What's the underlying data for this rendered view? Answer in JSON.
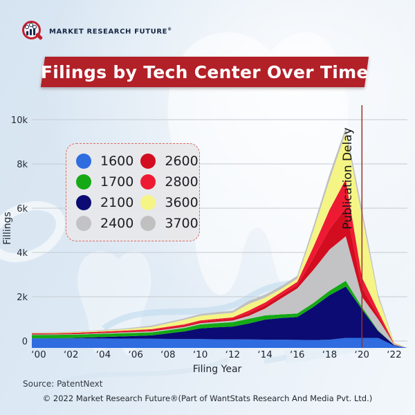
{
  "logo": {
    "brand": "MARKET RESEARCH FUTURE",
    "reg": "®",
    "icon": "magnifier-bar-chart-icon"
  },
  "banner": {
    "title": "Filings by Tech Center Over Time",
    "color": "#b22028"
  },
  "legend": {
    "items": [
      {
        "label": "1600",
        "color": "#2e6ce0"
      },
      {
        "label": "1700",
        "color": "#15a915"
      },
      {
        "label": "2100",
        "color": "#0b0b73"
      },
      {
        "label": "2400",
        "color": "#c3c3c5"
      },
      {
        "label": "2600",
        "color": "#d30d20"
      },
      {
        "label": "2800",
        "color": "#ee1a33"
      },
      {
        "label": "3600",
        "color": "#f5f586"
      },
      {
        "label": "3700",
        "color": "#c0c0c0"
      }
    ]
  },
  "annotation": {
    "label": "Publication Delay",
    "line_color": "#9b2f27",
    "x_year": 2020
  },
  "footer": {
    "source": "Source: PatentNext",
    "copyright": "© 2022 Market Research Future®(Part of WantStats Research And Media Pvt. Ltd.)"
  },
  "chart_data": {
    "type": "area",
    "stacked": true,
    "title": "Filings by Tech Center Over Time",
    "xlabel": "Filing Year",
    "ylabel": "Fillings",
    "ylim": [
      0,
      10000
    ],
    "grid": "horizontal",
    "legend_position": "upper-left",
    "x": [
      2000,
      2001,
      2002,
      2003,
      2004,
      2005,
      2006,
      2007,
      2008,
      2009,
      2010,
      2011,
      2012,
      2013,
      2014,
      2015,
      2016,
      2017,
      2018,
      2019,
      2020,
      2021,
      2022
    ],
    "x_tick_labels": [
      "‘00",
      "‘02",
      "‘04",
      "‘06",
      "‘08",
      "‘10",
      "‘12",
      "‘14",
      "‘16",
      "‘18",
      "‘20",
      "‘22"
    ],
    "y_ticks": [
      {
        "value": 0,
        "label": "0"
      },
      {
        "value": 2000,
        "label": "2k"
      },
      {
        "value": 4000,
        "label": "4k"
      },
      {
        "value": 6000,
        "label": "6k"
      },
      {
        "value": 8000,
        "label": "8k"
      },
      {
        "value": 10000,
        "label": "10k"
      }
    ],
    "series": [
      {
        "name": "1600",
        "color": "#2e6ce0",
        "values": [
          420,
          418,
          416,
          414,
          412,
          410,
          405,
          400,
          395,
          390,
          385,
          380,
          375,
          370,
          365,
          360,
          350,
          345,
          360,
          440,
          440,
          440,
          100
        ]
      },
      {
        "name": "2100",
        "color": "#0b0b73",
        "values": [
          0,
          5,
          15,
          40,
          65,
          90,
          120,
          150,
          240,
          330,
          470,
          520,
          560,
          700,
          875,
          950,
          1000,
          1450,
          1950,
          2250,
          1250,
          300,
          20
        ]
      },
      {
        "name": "1700",
        "color": "#15a915",
        "values": [
          150,
          150,
          148,
          146,
          144,
          140,
          136,
          132,
          140,
          150,
          175,
          185,
          195,
          205,
          185,
          160,
          155,
          175,
          200,
          250,
          100,
          30,
          5
        ]
      },
      {
        "name": "2400",
        "color": "#c3c3c5",
        "values": [
          20,
          20,
          22,
          25,
          30,
          35,
          40,
          45,
          48,
          50,
          55,
          60,
          70,
          130,
          300,
          700,
          1100,
          1450,
          1800,
          1950,
          450,
          500,
          30
        ]
      },
      {
        "name": "2600",
        "color": "#d30d20",
        "values": [
          30,
          30,
          32,
          35,
          38,
          40,
          45,
          50,
          55,
          60,
          65,
          68,
          70,
          120,
          135,
          140,
          150,
          520,
          900,
          1250,
          400,
          150,
          10
        ]
      },
      {
        "name": "2800",
        "color": "#ee1a33",
        "values": [
          20,
          22,
          25,
          28,
          32,
          35,
          40,
          45,
          48,
          50,
          55,
          60,
          65,
          110,
          125,
          130,
          140,
          490,
          850,
          1250,
          450,
          200,
          15
        ]
      },
      {
        "name": "3600",
        "color": "#f5f586",
        "values": [
          20,
          22,
          26,
          30,
          38,
          45,
          70,
          100,
          150,
          200,
          200,
          200,
          200,
          290,
          215,
          140,
          140,
          720,
          1300,
          2050,
          2700,
          600,
          40
        ]
      },
      {
        "name": "3700",
        "color": "#c0c0c0",
        "values": [
          20,
          20,
          22,
          25,
          30,
          35,
          45,
          60,
          60,
          60,
          80,
          90,
          95,
          140,
          135,
          130,
          130,
          195,
          260,
          220,
          300,
          150,
          15
        ]
      }
    ],
    "annotations": [
      {
        "type": "vline",
        "x": 2020,
        "label": "Publication Delay"
      }
    ]
  }
}
